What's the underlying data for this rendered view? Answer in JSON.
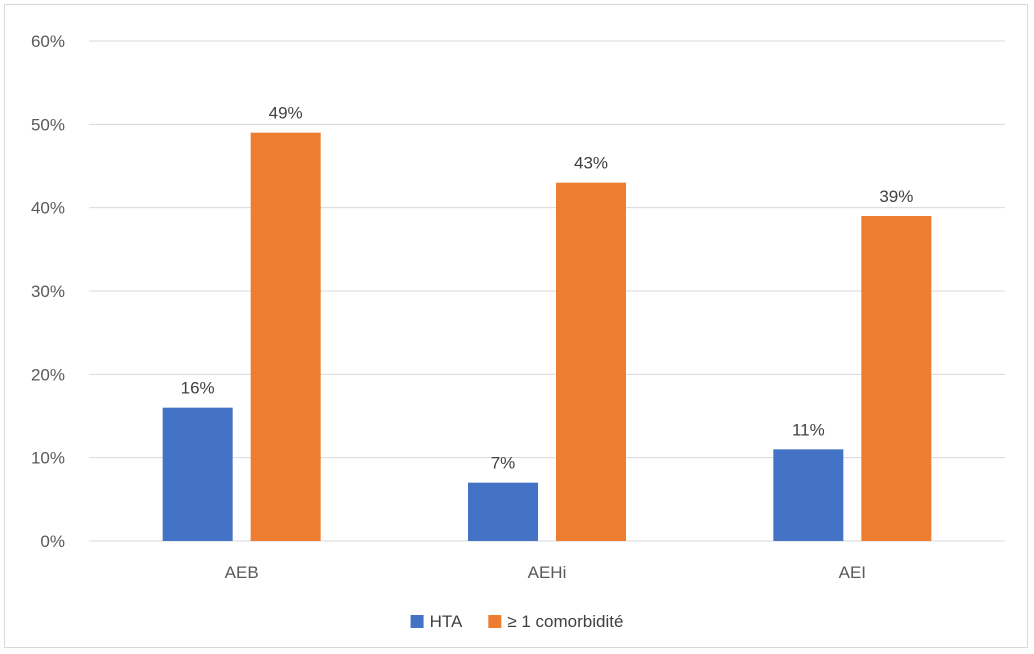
{
  "chart_data": {
    "type": "bar",
    "categories": [
      "AEB",
      "AEHi",
      "AEI"
    ],
    "series": [
      {
        "name": "HTA",
        "values": [
          16,
          7,
          11
        ],
        "labels": [
          "16%",
          "7%",
          "11%"
        ],
        "color": "#4472c4"
      },
      {
        "name": "≥ 1 comorbidité",
        "values": [
          49,
          43,
          39
        ],
        "labels": [
          "49%",
          "43%",
          "39%"
        ],
        "color": "#ed7d31"
      }
    ],
    "ylim": [
      0,
      60
    ],
    "yticks": [
      0,
      10,
      20,
      30,
      40,
      50,
      60
    ],
    "ytick_labels": [
      "0%",
      "10%",
      "20%",
      "30%",
      "40%",
      "50%",
      "60%"
    ],
    "grid": true,
    "legend_position": "bottom",
    "title": "",
    "xlabel": "",
    "ylabel": ""
  }
}
